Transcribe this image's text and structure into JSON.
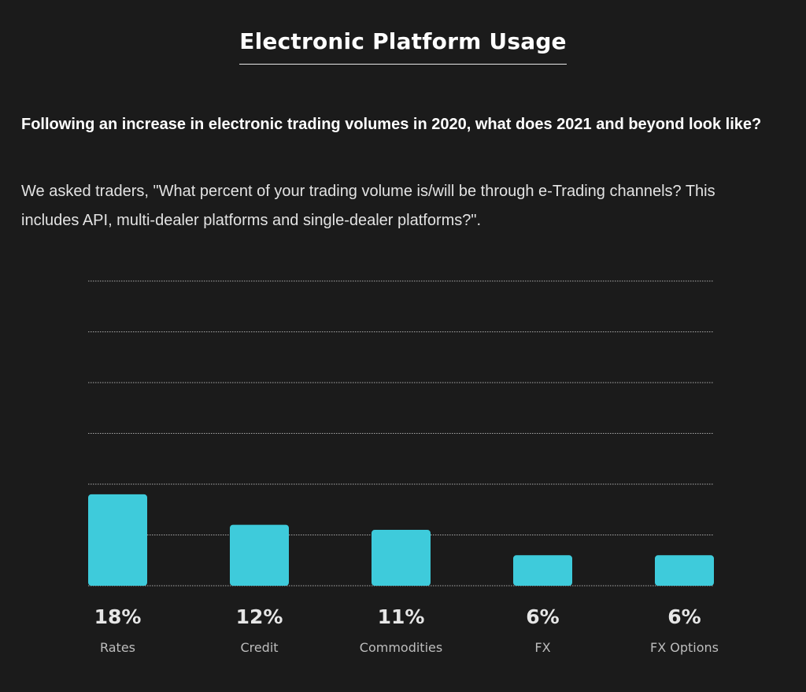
{
  "page": {
    "title": "Electronic Platform Usage",
    "question": "Following an increase in electronic trading volumes in 2020, what does 2021 and beyond look like?",
    "description": "We asked traders, \"What percent of your trading volume is/will be through e-Trading channels? This includes API, multi-dealer platforms and single-dealer platforms?\"."
  },
  "colors": {
    "background": "#1b1b1b",
    "bar": "#3ecbdb",
    "gridline": "#a8a8a8",
    "value_label": "#e6e6e6",
    "category_label": "#bdbdbd"
  },
  "chart_data": {
    "type": "bar",
    "categories": [
      "Rates",
      "Credit",
      "Commodities",
      "FX",
      "FX Options"
    ],
    "values": [
      18,
      12,
      11,
      6,
      6
    ],
    "value_labels": [
      "18%",
      "12%",
      "11%",
      "6%",
      "6%"
    ],
    "ylim": [
      0,
      60
    ],
    "grid": true
  }
}
